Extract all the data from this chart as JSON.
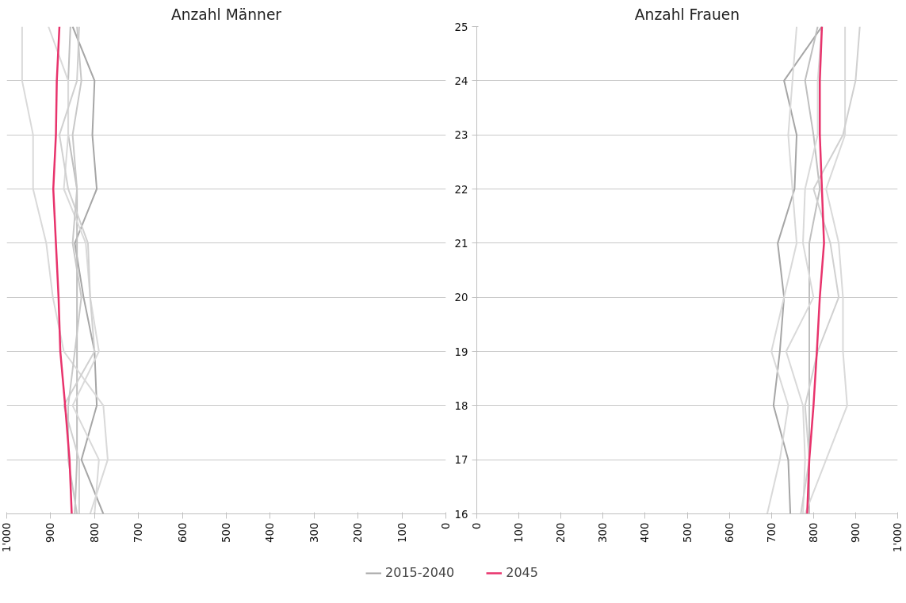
{
  "chart_data": [
    {
      "type": "line",
      "title": "Anzahl Männer",
      "orientation": "horizontal",
      "categories": [
        "25",
        "24",
        "23",
        "22",
        "21",
        "20",
        "19",
        "18",
        "17",
        "16"
      ],
      "xlim": [
        1000,
        0
      ],
      "xticks": [
        {
          "value": 1000,
          "label": "1'000"
        },
        900,
        800,
        700,
        600,
        500,
        400,
        300,
        200,
        100,
        0
      ],
      "grid": "y",
      "tick_labels": "x",
      "series": [
        {
          "color": "#a6a6a6",
          "values": [
            850,
            800,
            805,
            795,
            845,
            825,
            800,
            795,
            830,
            780
          ]
        },
        {
          "color": "#bfbfbf",
          "values": [
            855,
            860,
            860,
            840,
            840,
            840,
            840,
            840,
            840,
            845
          ]
        },
        {
          "color": "#d9d9d9",
          "values": [
            965,
            965,
            940,
            940,
            910,
            895,
            870,
            780,
            770,
            810
          ]
        },
        {
          "color": "#d9d9d9",
          "values": [
            905,
            860,
            860,
            870,
            820,
            810,
            790,
            850,
            790,
            800
          ]
        },
        {
          "color": "#d0d0d0",
          "values": [
            835,
            840,
            880,
            860,
            815,
            810,
            800,
            870,
            835,
            835
          ]
        },
        {
          "color": "#c8c8c8",
          "values": [
            840,
            830,
            850,
            840,
            850,
            830,
            845,
            860,
            860,
            840
          ]
        },
        {
          "color": "#e8336c",
          "values": [
            880,
            886,
            888,
            894,
            888,
            882,
            878,
            867,
            857,
            852
          ]
        }
      ]
    },
    {
      "type": "line",
      "title": "Anzahl Frauen",
      "orientation": "horizontal",
      "categories": [
        "25",
        "24",
        "23",
        "22",
        "21",
        "20",
        "19",
        "18",
        "17",
        "16"
      ],
      "xlim": [
        0,
        1000
      ],
      "xticks": [
        0,
        100,
        200,
        300,
        400,
        500,
        600,
        700,
        800,
        900,
        {
          "value": 1000,
          "label": "1'000"
        }
      ],
      "grid": "y",
      "legend": "bottom",
      "series": [
        {
          "name": "2015-2040",
          "color": "#a6a6a6",
          "values": [
            820,
            730,
            760,
            755,
            715,
            730,
            720,
            705,
            740,
            745
          ]
        },
        {
          "color": "#bfbfbf",
          "values": [
            810,
            780,
            800,
            815,
            790,
            790,
            790,
            790,
            790,
            790
          ]
        },
        {
          "color": "#d9d9d9",
          "values": [
            760,
            750,
            740,
            750,
            760,
            730,
            700,
            740,
            720,
            690
          ]
        },
        {
          "color": "#d9d9d9",
          "values": [
            820,
            810,
            810,
            780,
            775,
            800,
            735,
            775,
            780,
            775
          ]
        },
        {
          "color": "#d9d9d9",
          "values": [
            875,
            875,
            875,
            830,
            860,
            870,
            870,
            880,
            830,
            780
          ]
        },
        {
          "color": "#d0d0d0",
          "values": [
            910,
            900,
            870,
            800,
            840,
            860,
            810,
            780,
            790,
            770
          ]
        },
        {
          "name": "2045",
          "color": "#e8336c",
          "values": [
            820,
            815,
            815,
            820,
            825,
            815,
            808,
            800,
            790,
            785
          ]
        }
      ]
    }
  ]
}
